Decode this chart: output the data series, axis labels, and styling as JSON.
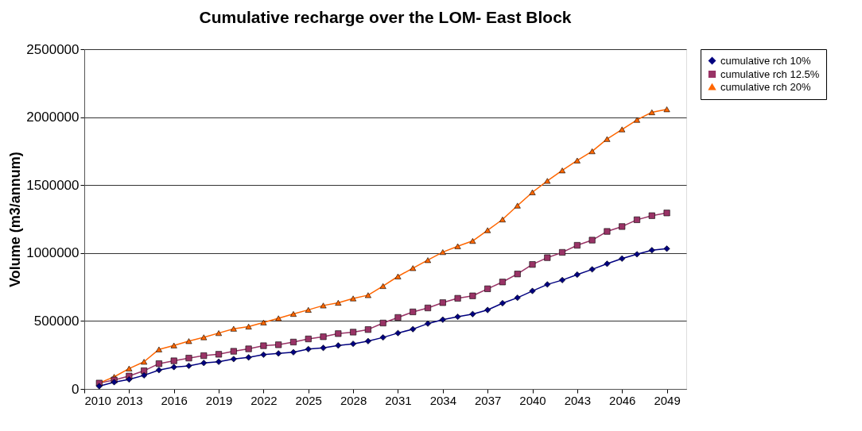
{
  "chart_data": {
    "type": "line",
    "title": "Cumulative recharge over the LOM- East Block",
    "ylabel": "Volume (m3/annum)",
    "x": [
      2011,
      2012,
      2013,
      2014,
      2015,
      2016,
      2017,
      2018,
      2019,
      2020,
      2021,
      2022,
      2023,
      2024,
      2025,
      2026,
      2027,
      2028,
      2029,
      2030,
      2031,
      2032,
      2033,
      2034,
      2035,
      2036,
      2037,
      2038,
      2039,
      2040,
      2041,
      2042,
      2043,
      2044,
      2045,
      2046,
      2047,
      2048,
      2049
    ],
    "series": [
      {
        "name": "cumulative rch 10%",
        "color": "#000080",
        "marker": "diamond",
        "values": [
          20000,
          50000,
          70000,
          100000,
          139000,
          161000,
          170000,
          191000,
          200000,
          220000,
          232000,
          252000,
          261000,
          270000,
          293000,
          302000,
          320000,
          332000,
          352000,
          379000,
          411000,
          440000,
          481000,
          510000,
          531000,
          551000,
          581000,
          631000,
          671000,
          721000,
          769000,
          801000,
          841000,
          880000,
          921000,
          959000,
          991000,
          1021000,
          1032000
        ]
      },
      {
        "name": "cumulative rch 12.5%",
        "color": "#993366",
        "marker": "square",
        "values": [
          43000,
          66000,
          95000,
          134000,
          186000,
          207000,
          227000,
          245000,
          255000,
          277000,
          295000,
          318000,
          325000,
          345000,
          368000,
          384000,
          407000,
          418000,
          437000,
          485000,
          526000,
          567000,
          596000,
          635000,
          667000,
          685000,
          737000,
          787000,
          846000,
          916000,
          966000,
          1005000,
          1057000,
          1095000,
          1159000,
          1195000,
          1245000,
          1275000,
          1295000
        ]
      },
      {
        "name": "cumulative rch 20%",
        "color": "#ff6600",
        "marker": "triangle",
        "values": [
          43000,
          89000,
          150000,
          200000,
          291000,
          320000,
          352000,
          380000,
          411000,
          443000,
          459000,
          489000,
          520000,
          552000,
          582000,
          614000,
          634000,
          666000,
          690000,
          757000,
          828000,
          889000,
          948000,
          1007000,
          1050000,
          1089000,
          1168000,
          1247000,
          1349000,
          1447000,
          1531000,
          1608000,
          1681000,
          1749000,
          1839000,
          1910000,
          1980000,
          2036000,
          2058000
        ]
      }
    ],
    "xlim": [
      2010,
      2050.3
    ],
    "xticks": [
      2010,
      2013,
      2016,
      2019,
      2022,
      2025,
      2028,
      2031,
      2034,
      2037,
      2040,
      2043,
      2046,
      2049
    ],
    "ylim": [
      0,
      2500000
    ],
    "yticks": [
      0,
      500000,
      1000000,
      1500000,
      2000000,
      2500000
    ],
    "grid": "y",
    "legend": "right",
    "line_style": "solid"
  }
}
